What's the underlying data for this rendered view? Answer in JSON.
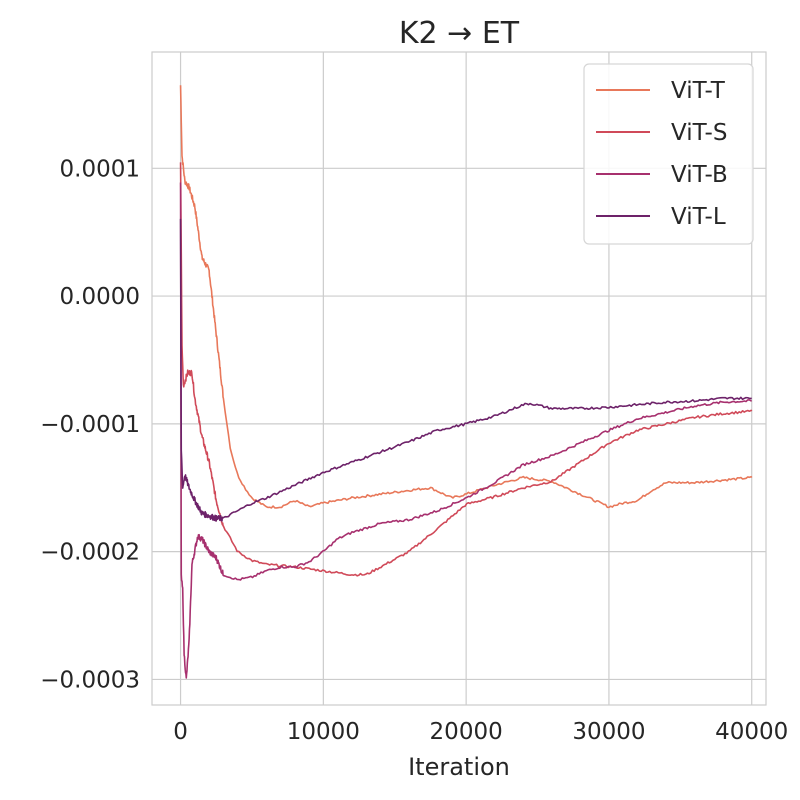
{
  "chart_data": {
    "type": "line",
    "title": "K2 → ET",
    "xlabel": "Iteration",
    "ylabel": "",
    "xlim": [
      -2000,
      41000
    ],
    "ylim": [
      -0.00032,
      0.000191
    ],
    "x_ticks": [
      0,
      10000,
      20000,
      30000,
      40000
    ],
    "x_tick_labels": [
      "0",
      "10000",
      "20000",
      "30000",
      "40000"
    ],
    "y_ticks": [
      0.0001,
      0.0,
      -0.0001,
      -0.0002,
      -0.0003
    ],
    "y_tick_labels": [
      "0.0001",
      "0.0000",
      "−0.0001",
      "−0.0002",
      "−0.0003"
    ],
    "grid": true,
    "legend_position": "top-right",
    "series": [
      {
        "name": "ViT-T",
        "color": "#e8785a",
        "x": [
          0,
          100,
          300,
          600,
          1000,
          1500,
          2000,
          2500,
          3000,
          3500,
          4000,
          4500,
          5000,
          6000,
          7000,
          8000,
          9000,
          10000,
          12000,
          14000,
          16000,
          17500,
          19000,
          20000,
          22000,
          24000,
          26000,
          28000,
          29000,
          30000,
          31000,
          32000,
          33000,
          34000,
          36000,
          38000,
          40000
        ],
        "y": [
          0.000165,
          0.00011,
          9e-05,
          8.5e-05,
          7e-05,
          3e-05,
          2e-05,
          -3e-05,
          -8e-05,
          -0.00012,
          -0.00014,
          -0.00015,
          -0.000158,
          -0.000165,
          -0.000165,
          -0.00016,
          -0.000165,
          -0.000162,
          -0.000158,
          -0.000155,
          -0.000152,
          -0.00015,
          -0.000158,
          -0.000155,
          -0.000148,
          -0.000142,
          -0.000145,
          -0.000155,
          -0.00016,
          -0.000165,
          -0.000162,
          -0.00016,
          -0.000152,
          -0.000146,
          -0.000146,
          -0.000144,
          -0.000142
        ]
      },
      {
        "name": "ViT-S",
        "color": "#d04a59",
        "x": [
          0,
          100,
          200,
          500,
          800,
          1000,
          1500,
          2000,
          2500,
          3000,
          4000,
          5000,
          6000,
          8000,
          10000,
          12000,
          13000,
          14000,
          16000,
          18000,
          20000,
          22000,
          24000,
          26000,
          28000,
          30000,
          32000,
          34000,
          36000,
          38000,
          40000
        ],
        "y": [
          0.000105,
          -4e-05,
          -7e-05,
          -6e-05,
          -6e-05,
          -8e-05,
          -0.00011,
          -0.00013,
          -0.00016,
          -0.00018,
          -0.0002,
          -0.000207,
          -0.00021,
          -0.000212,
          -0.000215,
          -0.000218,
          -0.000218,
          -0.000212,
          -0.0002,
          -0.000182,
          -0.000163,
          -0.000157,
          -0.00015,
          -0.000145,
          -0.00013,
          -0.000115,
          -0.000105,
          -0.0001,
          -9.5e-05,
          -9.2e-05,
          -9e-05
        ]
      },
      {
        "name": "ViT-B",
        "color": "#a7306e",
        "x": [
          0,
          50,
          150,
          250,
          400,
          600,
          800,
          1200,
          1500,
          2000,
          2500,
          3000,
          4000,
          5000,
          6000,
          7000,
          8000,
          9000,
          10000,
          11000,
          12000,
          14000,
          16000,
          18000,
          20000,
          22000,
          24000,
          26000,
          28000,
          30000,
          32000,
          34000,
          36000,
          38000,
          40000
        ],
        "y": [
          9e-05,
          -0.00022,
          -0.00023,
          -0.00028,
          -0.0003,
          -0.00027,
          -0.00021,
          -0.000188,
          -0.00019,
          -0.0002,
          -0.000205,
          -0.000218,
          -0.000222,
          -0.00022,
          -0.000215,
          -0.000212,
          -0.000212,
          -0.000208,
          -0.0002,
          -0.00019,
          -0.000185,
          -0.000178,
          -0.000175,
          -0.000168,
          -0.000158,
          -0.000146,
          -0.000132,
          -0.000125,
          -0.000115,
          -0.000105,
          -9.6e-05,
          -9.1e-05,
          -8.6e-05,
          -8.3e-05,
          -8.2e-05
        ]
      },
      {
        "name": "ViT-L",
        "color": "#6d2269",
        "x": [
          0,
          50,
          150,
          300,
          600,
          1000,
          1500,
          2000,
          2500,
          3000,
          4000,
          5000,
          6000,
          8000,
          10000,
          12000,
          14000,
          16000,
          18000,
          20000,
          22000,
          24000,
          24500,
          26000,
          28000,
          30000,
          32000,
          34000,
          36000,
          38000,
          40000
        ],
        "y": [
          6e-05,
          -0.00012,
          -0.00015,
          -0.00014,
          -0.00015,
          -0.00016,
          -0.00017,
          -0.000172,
          -0.000174,
          -0.000174,
          -0.000168,
          -0.000162,
          -0.000158,
          -0.000148,
          -0.000138,
          -0.00013,
          -0.000122,
          -0.000114,
          -0.000105,
          -0.0001,
          -9.4e-05,
          -8.5e-05,
          -8.4e-05,
          -8.8e-05,
          -8.8e-05,
          -8.7e-05,
          -8.5e-05,
          -8.3e-05,
          -8.2e-05,
          -8e-05,
          -8e-05
        ]
      }
    ]
  }
}
